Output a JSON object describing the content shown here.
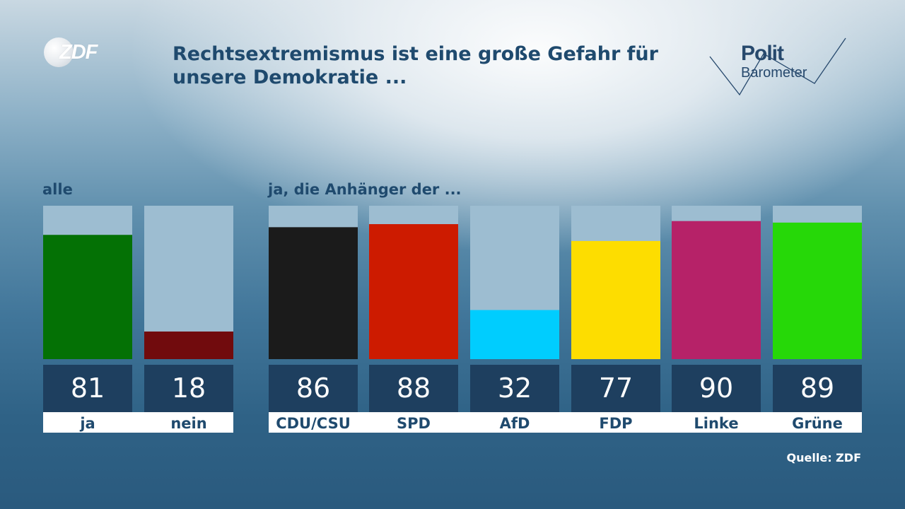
{
  "brand": {
    "logo": "ZDF",
    "polit": "Polit",
    "barometer": "Barometer"
  },
  "header": {
    "title": "Rechtsextremismus ist eine große Gefahr für unsere Demokratie ..."
  },
  "groups": {
    "all": "alle",
    "parties": "ja, die Anhänger der ..."
  },
  "footer": {
    "source": "Quelle: ZDF"
  },
  "colors": {
    "track": "#9dbdd1",
    "value_box": "#1e3f5f",
    "label_strip": "#ffffff",
    "text_dark": "#1f4a6e"
  },
  "chart_data": {
    "type": "bar",
    "title": "Rechtsextremismus ist eine große Gefahr für unsere Demokratie ...",
    "ylim": [
      0,
      100
    ],
    "unit": "%",
    "categories": [
      "ja",
      "nein",
      "CDU/CSU",
      "SPD",
      "AfD",
      "FDP",
      "Linke",
      "Grüne"
    ],
    "values": [
      81,
      18,
      86,
      88,
      32,
      77,
      90,
      89
    ],
    "colors": [
      "#047105",
      "#710b0d",
      "#1b1b1b",
      "#cd1b00",
      "#00cdfe",
      "#fddd00",
      "#b62268",
      "#26d808"
    ],
    "groups": [
      {
        "label": "alle",
        "categories": [
          "ja",
          "nein"
        ]
      },
      {
        "label": "ja, die Anhänger der ...",
        "categories": [
          "CDU/CSU",
          "SPD",
          "AfD",
          "FDP",
          "Linke",
          "Grüne"
        ]
      }
    ]
  }
}
